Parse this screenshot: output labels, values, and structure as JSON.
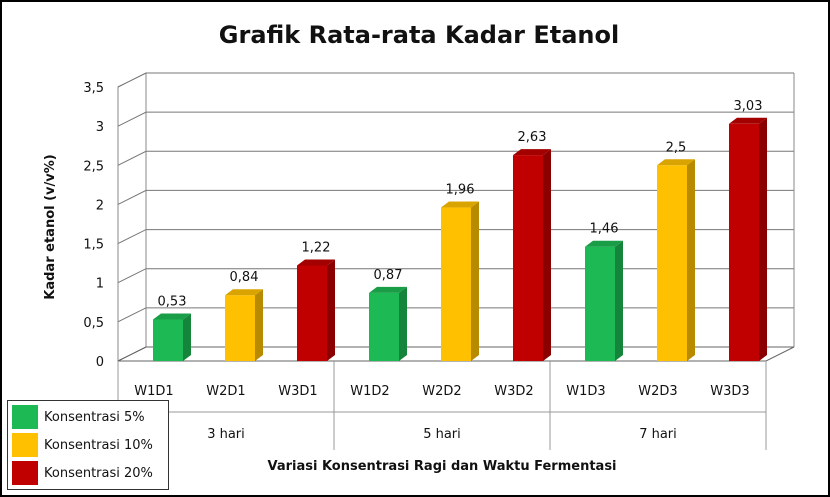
{
  "chart_data": {
    "type": "bar",
    "title": "Grafik Rata-rata Kadar Etanol",
    "xlabel": "Variasi Konsentrasi Ragi dan Waktu Fermentasi",
    "ylabel": "Kadar etanol (v/v%)",
    "ylim": [
      0,
      3.5
    ],
    "yticks": [
      "0",
      "0,5",
      "1",
      "1,5",
      "2",
      "2,5",
      "3",
      "3,5"
    ],
    "categories": [
      "W1D1",
      "W2D1",
      "W3D1",
      "W1D2",
      "W2D2",
      "W3D2",
      "W1D3",
      "W2D3",
      "W3D3"
    ],
    "groups": [
      "3 hari",
      "5 hari",
      "7 hari"
    ],
    "values": [
      0.53,
      0.84,
      1.22,
      0.87,
      1.96,
      2.63,
      1.46,
      2.5,
      3.03
    ],
    "value_labels": [
      "0,53",
      "0,84",
      "1,22",
      "0,87",
      "1,96",
      "2,63",
      "1,46",
      "2,5",
      "3,03"
    ],
    "series_of_bar": [
      0,
      1,
      2,
      0,
      1,
      2,
      0,
      1,
      2
    ],
    "series": [
      {
        "name": "Konsentrasi 5%",
        "color": "#1db954"
      },
      {
        "name": "Konsentrasi 10%",
        "color": "#ffc000"
      },
      {
        "name": "Konsentrasi 20%",
        "color": "#c00000"
      }
    ],
    "grid": true,
    "legend_position": "bottom-left"
  }
}
